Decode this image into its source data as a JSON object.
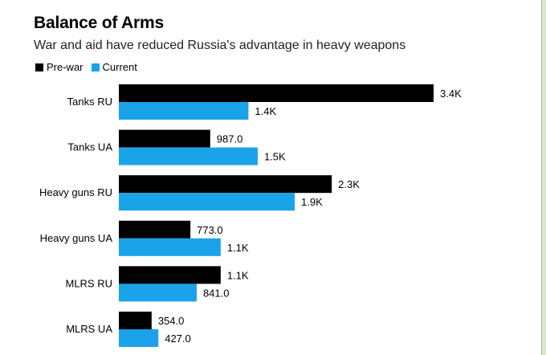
{
  "header": {
    "title": "Balance of Arms",
    "subtitle": "War and aid have reduced Russia's advantage in heavy weapons"
  },
  "legend": [
    {
      "label": "Pre-war",
      "color": "#000000"
    },
    {
      "label": "Current",
      "color": "#1aa3e8"
    }
  ],
  "chart_data": {
    "type": "bar",
    "orientation": "horizontal",
    "title": "Balance of Arms",
    "subtitle": "War and aid have reduced Russia's advantage in heavy weapons",
    "categories": [
      "Tanks RU",
      "Tanks UA",
      "Heavy guns RU",
      "Heavy guns UA",
      "MLRS RU",
      "MLRS UA"
    ],
    "series": [
      {
        "name": "Pre-war",
        "color": "#000000",
        "values": [
          3400,
          987,
          2300,
          773,
          1100,
          354
        ],
        "labels": [
          "3.4K",
          "987.0",
          "2.3K",
          "773.0",
          "1.1K",
          "354.0"
        ]
      },
      {
        "name": "Current",
        "color": "#1aa3e8",
        "values": [
          1400,
          1500,
          1900,
          1100,
          841,
          427
        ],
        "labels": [
          "1.4K",
          "1.5K",
          "1.9K",
          "1.1K",
          "841.0",
          "427.0"
        ]
      }
    ],
    "xlim": [
      0,
      3400
    ],
    "grid": false,
    "legend_position": "top-left"
  }
}
